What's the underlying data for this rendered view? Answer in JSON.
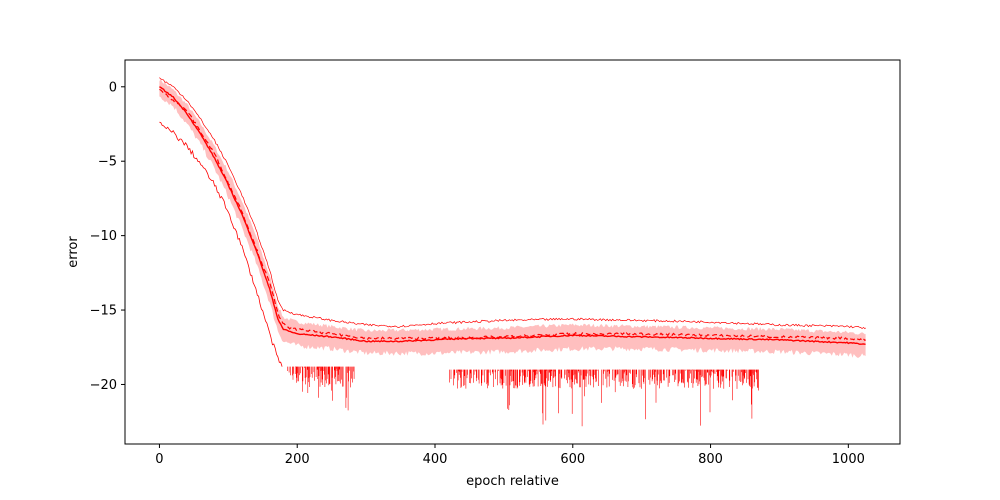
{
  "chart_data": {
    "type": "line",
    "title": "",
    "xlabel": "epoch relative",
    "ylabel": "error",
    "xlim": [
      -50,
      1075
    ],
    "ylim": [
      -24,
      1.8
    ],
    "xticks": [
      0,
      200,
      400,
      600,
      800,
      1000
    ],
    "yticks": [
      0,
      -5,
      -10,
      -15,
      -20
    ],
    "grid": false,
    "colors": {
      "main": "#ff0000",
      "band": "#ffbfbf"
    },
    "series": [
      {
        "style": "solid",
        "points": [
          [
            0,
            0.0
          ],
          [
            20,
            -0.7
          ],
          [
            40,
            -1.8
          ],
          [
            60,
            -3.2
          ],
          [
            80,
            -4.8
          ],
          [
            100,
            -6.6
          ],
          [
            120,
            -8.6
          ],
          [
            140,
            -10.9
          ],
          [
            160,
            -13.6
          ],
          [
            172,
            -15.6
          ],
          [
            180,
            -16.3
          ],
          [
            200,
            -16.6
          ],
          [
            250,
            -16.8
          ],
          [
            300,
            -17.1
          ],
          [
            350,
            -17.1
          ],
          [
            400,
            -17.0
          ],
          [
            450,
            -16.9
          ],
          [
            500,
            -16.9
          ],
          [
            600,
            -16.7
          ],
          [
            700,
            -16.8
          ],
          [
            800,
            -16.9
          ],
          [
            900,
            -17.0
          ],
          [
            1000,
            -17.2
          ],
          [
            1025,
            -17.3
          ]
        ]
      },
      {
        "style": "dashed",
        "points": [
          [
            0,
            -0.2
          ],
          [
            40,
            -1.6
          ],
          [
            80,
            -4.5
          ],
          [
            120,
            -8.4
          ],
          [
            160,
            -13.2
          ],
          [
            175,
            -15.6
          ],
          [
            185,
            -16.2
          ],
          [
            200,
            -16.3
          ],
          [
            250,
            -16.6
          ],
          [
            300,
            -16.9
          ],
          [
            400,
            -16.9
          ],
          [
            500,
            -16.8
          ],
          [
            600,
            -16.6
          ],
          [
            700,
            -16.6
          ],
          [
            800,
            -16.7
          ],
          [
            900,
            -16.8
          ],
          [
            1000,
            -16.9
          ],
          [
            1025,
            -17.0
          ]
        ]
      },
      {
        "style": "thin-upper",
        "points": [
          [
            0,
            0.6
          ],
          [
            20,
            0.0
          ],
          [
            40,
            -0.9
          ],
          [
            60,
            -2.2
          ],
          [
            80,
            -3.6
          ],
          [
            100,
            -5.3
          ],
          [
            120,
            -7.3
          ],
          [
            140,
            -9.6
          ],
          [
            160,
            -12.3
          ],
          [
            172,
            -14.4
          ],
          [
            180,
            -15.0
          ],
          [
            200,
            -15.3
          ],
          [
            250,
            -15.7
          ],
          [
            300,
            -16.0
          ],
          [
            350,
            -16.1
          ],
          [
            400,
            -15.9
          ],
          [
            500,
            -15.7
          ],
          [
            600,
            -15.6
          ],
          [
            700,
            -15.7
          ],
          [
            800,
            -15.8
          ],
          [
            900,
            -16.0
          ],
          [
            1000,
            -16.1
          ],
          [
            1025,
            -16.2
          ]
        ]
      },
      {
        "style": "thin-lower",
        "points": [
          [
            0,
            -2.5
          ],
          [
            20,
            -3.1
          ],
          [
            40,
            -4.0
          ],
          [
            60,
            -5.2
          ],
          [
            80,
            -6.6
          ],
          [
            100,
            -8.4
          ],
          [
            120,
            -10.8
          ],
          [
            140,
            -13.6
          ],
          [
            160,
            -16.6
          ],
          [
            172,
            -18.3
          ],
          [
            178,
            -18.8
          ]
        ]
      }
    ],
    "band": {
      "upper": [
        [
          0,
          0.5
        ],
        [
          20,
          -0.2
        ],
        [
          40,
          -1.2
        ],
        [
          60,
          -2.5
        ],
        [
          80,
          -4.0
        ],
        [
          100,
          -5.7
        ],
        [
          120,
          -7.7
        ],
        [
          140,
          -10.0
        ],
        [
          160,
          -12.7
        ],
        [
          172,
          -14.7
        ],
        [
          180,
          -15.5
        ],
        [
          200,
          -15.8
        ],
        [
          250,
          -16.1
        ],
        [
          300,
          -16.4
        ],
        [
          400,
          -16.3
        ],
        [
          500,
          -16.2
        ],
        [
          600,
          -16.0
        ],
        [
          700,
          -16.1
        ],
        [
          800,
          -16.2
        ],
        [
          900,
          -16.3
        ],
        [
          1000,
          -16.5
        ],
        [
          1025,
          -16.6
        ]
      ],
      "lower": [
        [
          0,
          -0.6
        ],
        [
          20,
          -1.3
        ],
        [
          40,
          -2.5
        ],
        [
          60,
          -3.9
        ],
        [
          80,
          -5.5
        ],
        [
          100,
          -7.4
        ],
        [
          120,
          -9.5
        ],
        [
          140,
          -11.8
        ],
        [
          160,
          -14.5
        ],
        [
          172,
          -16.4
        ],
        [
          180,
          -17.1
        ],
        [
          200,
          -17.4
        ],
        [
          250,
          -17.6
        ],
        [
          300,
          -17.9
        ],
        [
          400,
          -17.9
        ],
        [
          500,
          -17.8
        ],
        [
          600,
          -17.6
        ],
        [
          700,
          -17.6
        ],
        [
          800,
          -17.7
        ],
        [
          900,
          -17.8
        ],
        [
          1000,
          -18.0
        ],
        [
          1025,
          -18.1
        ]
      ]
    },
    "spike_segments": [
      {
        "x_range": [
          185,
          283
        ],
        "baseline": -18.8,
        "typical_depth": -20.2,
        "max_depth": -21.8
      },
      {
        "x_range": [
          420,
          870
        ],
        "baseline": -19.0,
        "typical_depth": -20.3,
        "max_depth": -23.0
      }
    ]
  }
}
